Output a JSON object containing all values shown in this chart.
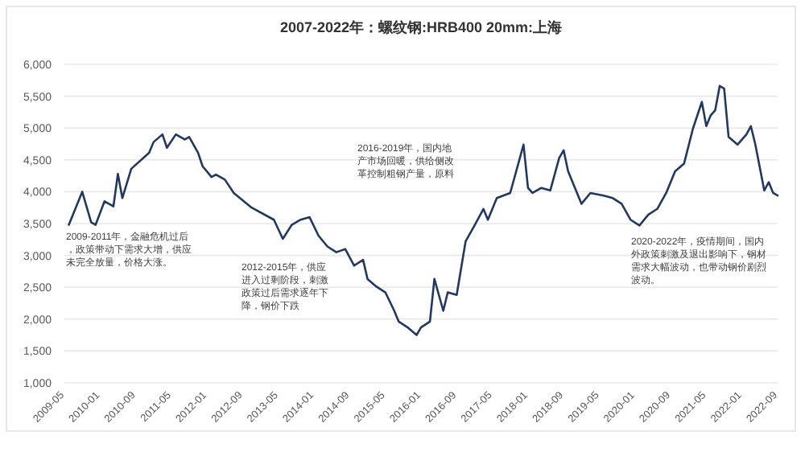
{
  "chart_data": {
    "type": "line",
    "title": "2007-2022年：螺纹钢:HRB400 20mm:上海",
    "x": [
      "2009-06",
      "2009-09",
      "2009-11",
      "2009-12",
      "2010-02",
      "2010-04",
      "2010-05",
      "2010-06",
      "2010-08",
      "2010-12",
      "2011-01",
      "2011-03",
      "2011-04",
      "2011-06",
      "2011-08",
      "2011-09",
      "2011-11",
      "2011-12",
      "2012-02",
      "2012-03",
      "2012-05",
      "2012-07",
      "2012-11",
      "2013-04",
      "2013-06",
      "2013-08",
      "2013-10",
      "2013-12",
      "2014-02",
      "2014-04",
      "2014-06",
      "2014-08",
      "2014-10",
      "2014-12",
      "2015-01",
      "2015-03",
      "2015-05",
      "2015-07",
      "2015-08",
      "2015-10",
      "2015-12",
      "2016-01",
      "2016-03",
      "2016-04",
      "2016-06",
      "2016-07",
      "2016-09",
      "2016-11",
      "2017-01",
      "2017-03",
      "2017-04",
      "2017-06",
      "2017-09",
      "2017-10",
      "2017-12",
      "2018-01",
      "2018-02",
      "2018-04",
      "2018-06",
      "2018-08",
      "2018-09",
      "2018-10",
      "2018-12",
      "2019-01",
      "2019-03",
      "2019-06",
      "2019-08",
      "2019-10",
      "2019-12",
      "2020-02",
      "2020-04",
      "2020-06",
      "2020-08",
      "2020-10",
      "2020-12",
      "2021-02",
      "2021-04",
      "2021-05",
      "2021-06",
      "2021-07",
      "2021-08",
      "2021-09",
      "2021-10",
      "2021-12",
      "2022-02",
      "2022-03",
      "2022-04",
      "2022-06",
      "2022-07",
      "2022-08",
      "2022-09"
    ],
    "series": [
      {
        "color": "#1f3864",
        "values": [
          3480,
          4000,
          3520,
          3480,
          3850,
          3770,
          4280,
          3900,
          4360,
          4610,
          4780,
          4900,
          4690,
          4900,
          4820,
          4860,
          4610,
          4400,
          4230,
          4270,
          4190,
          3980,
          3750,
          3560,
          3260,
          3480,
          3560,
          3600,
          3310,
          3140,
          3050,
          3100,
          2840,
          2930,
          2630,
          2510,
          2420,
          2130,
          1960,
          1870,
          1750,
          1870,
          1960,
          2630,
          2130,
          2420,
          2380,
          3220,
          3470,
          3730,
          3560,
          3900,
          3980,
          4230,
          4740,
          4060,
          3980,
          4060,
          4020,
          4530,
          4650,
          4320,
          3980,
          3810,
          3980,
          3940,
          3900,
          3810,
          3560,
          3470,
          3640,
          3730,
          3980,
          4320,
          4440,
          4990,
          5410,
          5030,
          5200,
          5280,
          5660,
          5620,
          4860,
          4740,
          4900,
          5030,
          4740,
          4020,
          4150,
          3980,
          3940
        ]
      }
    ],
    "ylim": [
      1000,
      6000
    ],
    "yticks": [
      {
        "value": 1000,
        "label": "1,000"
      },
      {
        "value": 1500,
        "label": "1,500"
      },
      {
        "value": 2000,
        "label": "2,000"
      },
      {
        "value": 2500,
        "label": "2,500"
      },
      {
        "value": 3000,
        "label": "3,000"
      },
      {
        "value": 3500,
        "label": "3,500"
      },
      {
        "value": 4000,
        "label": "4,000"
      },
      {
        "value": 4500,
        "label": "4,500"
      },
      {
        "value": 5000,
        "label": "5,000"
      },
      {
        "value": 5500,
        "label": "5,500"
      },
      {
        "value": 6000,
        "label": "6,000"
      }
    ],
    "xlim": [
      "2009-05",
      "2022-09"
    ],
    "xticks": [
      "2009-05",
      "2010-01",
      "2010-09",
      "2011-05",
      "2012-01",
      "2012-09",
      "2013-05",
      "2014-01",
      "2014-09",
      "2015-05",
      "2016-01",
      "2016-09",
      "2017-05",
      "2018-01",
      "2018-09",
      "2019-05",
      "2020-01",
      "2020-09",
      "2021-05",
      "2022-01",
      "2022-09"
    ],
    "grid": "y",
    "annotations": [
      "2009-2011年，金融危机过后，政策带动下需求大增，供应未完全放量，价格大涨。",
      "2012-2015年，供应进入过剩阶段，刺激政策过后需求逐年下降，钢价下跌",
      "2016-2019年，国内地产市场回暖，供给侧改革控制粗钢产量，原料",
      "2020-2022年，疫情期间，国内外政策刺激及退出影响下，钢材需求大幅波动，也带动钢价剧烈波动。"
    ]
  }
}
